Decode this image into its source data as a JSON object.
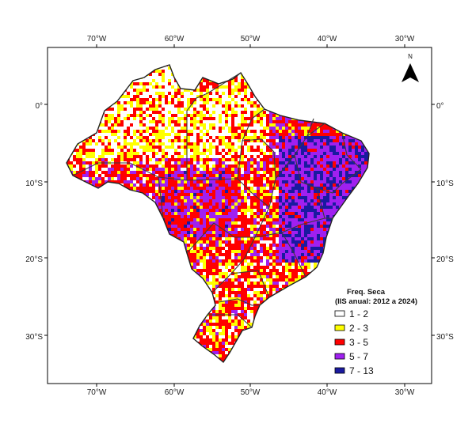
{
  "map": {
    "axes": {
      "top_lon_labels": [
        "70°W",
        "60°W",
        "50°W",
        "40°W",
        "30°W"
      ],
      "bottom_lon_labels": [
        "70°W",
        "60°W",
        "50°W",
        "40°W",
        "30°W"
      ],
      "left_lat_labels": [
        "0°",
        "10°S",
        "20°S",
        "30°S"
      ],
      "right_lat_labels": [
        "0°",
        "10°S",
        "20°S",
        "30°S"
      ]
    },
    "north_arrow": {
      "label": "N",
      "icon": "north-arrow-icon"
    },
    "legend": {
      "title_line1": "Freq. Seca",
      "title_line2": "(IIS anual: 2012 a 2024)",
      "items": [
        {
          "label": "1 - 2",
          "color": "#ffffff"
        },
        {
          "label": "2 - 3",
          "color": "#ffff00"
        },
        {
          "label": "3 - 5",
          "color": "#ff0000"
        },
        {
          "label": "5 - 7",
          "color": "#a020f0"
        },
        {
          "label": "7 - 13",
          "color": "#1a1aa0"
        }
      ]
    }
  }
}
